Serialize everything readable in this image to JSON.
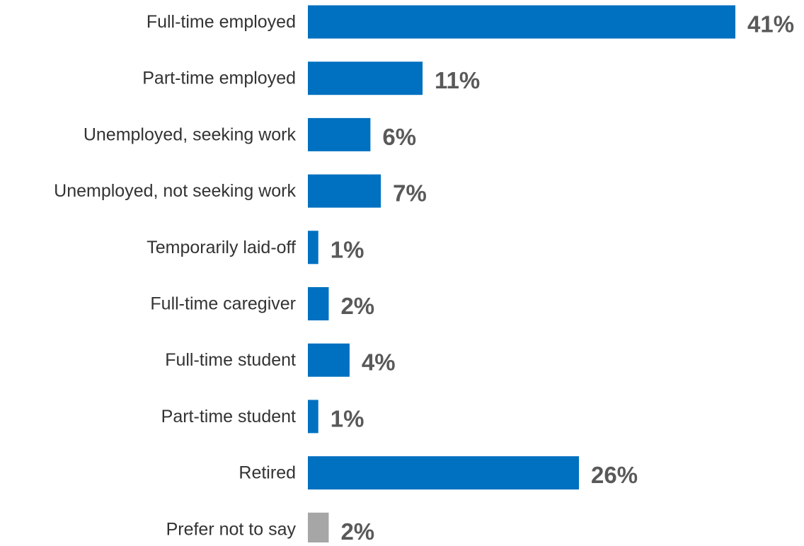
{
  "chart_data": {
    "type": "bar",
    "orientation": "horizontal",
    "categories": [
      "Full-time employed",
      "Part-time employed",
      "Unemployed, seeking work",
      "Unemployed, not seeking work",
      "Temporarily laid-off",
      "Full-time caregiver",
      "Full-time student",
      "Part-time student",
      "Retired",
      "Prefer not to say"
    ],
    "values": [
      41,
      11,
      6,
      7,
      1,
      2,
      4,
      1,
      26,
      2
    ],
    "value_labels": [
      "41%",
      "11%",
      "6%",
      "7%",
      "1%",
      "2%",
      "4%",
      "1%",
      "26%",
      "2%"
    ],
    "unit": "%",
    "xlim": [
      0,
      41
    ],
    "grid": false,
    "legend": "none",
    "colors": {
      "default": "#0070C0",
      "Prefer not to say": "#A6A6A6"
    }
  }
}
